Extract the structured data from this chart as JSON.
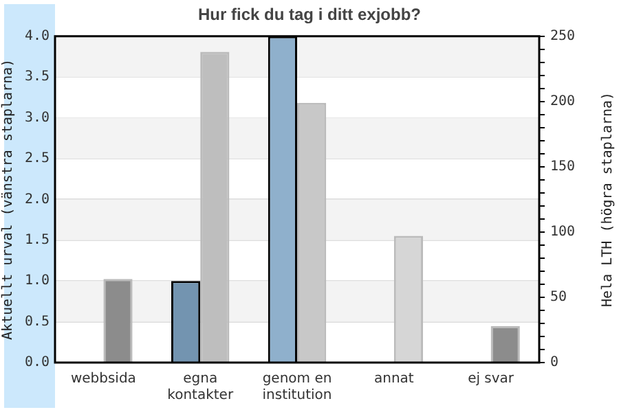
{
  "chart_data": {
    "type": "bar",
    "title": "Hur fick du tag i ditt exjobb?",
    "categories": [
      "webbsida",
      "egna kontakter",
      "genom en institution",
      "annat",
      "ej svar"
    ],
    "ylabel": "Aktuellt urval (vänstra staplarna)",
    "y2label": "Hela LTH (högra staplarna)",
    "series": [
      {
        "colors": [
          "#7394b0",
          "#7394b0",
          "#8fb0cc",
          "#8fb0cc",
          "#8fb0cc"
        ],
        "values": [
          0,
          1.0,
          4.0,
          0,
          0
        ]
      },
      {
        "axis": "y2",
        "colors": [
          "#8c8c8c",
          "#bebebe",
          "#c8c8c8",
          "#d6d6d6",
          "#8c8c8c"
        ],
        "values": [
          64,
          238,
          199,
          97,
          28
        ]
      }
    ],
    "ylim": [
      0,
      4.0
    ],
    "yticks": [
      {
        "value": 0,
        "label": "0.0"
      },
      {
        "value": 0.5,
        "label": "0.5"
      },
      {
        "value": 1,
        "label": "1.0"
      },
      {
        "value": 1.5,
        "label": "1.5"
      },
      {
        "value": 2,
        "label": "2.0"
      },
      {
        "value": 2.5,
        "label": "2.5"
      },
      {
        "value": 3,
        "label": "3.0"
      },
      {
        "value": 3.5,
        "label": "3.5"
      },
      {
        "value": 4,
        "label": "4.0"
      }
    ],
    "y2lim": [
      0,
      250
    ],
    "y2ticks": [
      0,
      {
        "value": 10,
        "label": null
      },
      {
        "value": 20,
        "label": null
      },
      {
        "value": 30,
        "label": null
      },
      {
        "value": 40,
        "label": null
      },
      50,
      {
        "value": 60,
        "label": null
      },
      {
        "value": 70,
        "label": null
      },
      {
        "value": 80,
        "label": null
      },
      {
        "value": 90,
        "label": null
      },
      100,
      {
        "value": 110,
        "label": null
      },
      {
        "value": 120,
        "label": null
      },
      {
        "value": 130,
        "label": null
      },
      {
        "value": 140,
        "label": null
      },
      150,
      {
        "value": 160,
        "label": null
      },
      {
        "value": 170,
        "label": null
      },
      {
        "value": 180,
        "label": null
      },
      {
        "value": 190,
        "label": null
      },
      200,
      {
        "value": 210,
        "label": null
      },
      {
        "value": 220,
        "label": null
      },
      {
        "value": 230,
        "label": null
      },
      {
        "value": 240,
        "label": null
      },
      250
    ],
    "bands": [
      {
        "axis": "y",
        "from": 0.5,
        "to": 1.0,
        "color": "#f3f3f3"
      },
      {
        "axis": "y",
        "from": 1.5,
        "to": 2.0,
        "color": "#f3f3f3"
      },
      {
        "axis": "y",
        "from": 2.5,
        "to": 3.0,
        "color": "#f3f3f3"
      },
      {
        "axis": "y",
        "from": 3.5,
        "to": 4.0,
        "color": "#f3f3f3"
      }
    ],
    "grid": "y",
    "legend": false
  }
}
